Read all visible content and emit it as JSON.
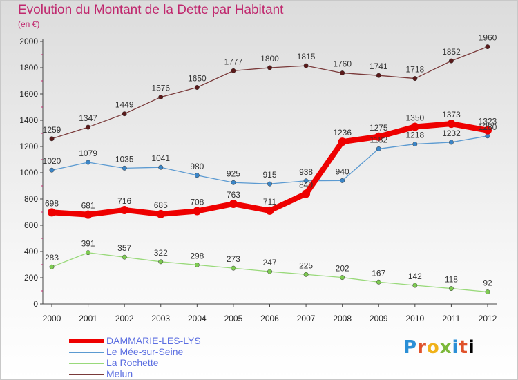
{
  "chart_data": {
    "type": "line",
    "title": "Evolution du Montant de la Dette par Habitant",
    "subtitle": "(en €)",
    "x": [
      "2000",
      "2001",
      "2002",
      "2003",
      "2004",
      "2005",
      "2006",
      "2007",
      "2008",
      "2009",
      "2010",
      "2011",
      "2012"
    ],
    "ylim": [
      0,
      2000
    ],
    "yticks": [
      0,
      200,
      400,
      600,
      800,
      1000,
      1200,
      1400,
      1600,
      1800,
      2000
    ],
    "grid": false,
    "legend_position": "bottom-left",
    "series": [
      {
        "name": "DAMMARIE-LES-LYS",
        "color": "#ee0000",
        "width": 8,
        "values": [
          698,
          681,
          716,
          685,
          708,
          763,
          711,
          840,
          1236,
          1275,
          1350,
          1373,
          1323
        ]
      },
      {
        "name": "Le Mée-sur-Seine",
        "color": "#5b9ad1",
        "width": 1.3,
        "values": [
          1020,
          1079,
          1035,
          1041,
          980,
          925,
          915,
          938,
          940,
          1182,
          1218,
          1232,
          1280
        ]
      },
      {
        "name": "La Rochette",
        "color": "#99d97a",
        "width": 1.3,
        "values": [
          283,
          391,
          357,
          322,
          298,
          273,
          247,
          225,
          202,
          167,
          142,
          118,
          92
        ]
      },
      {
        "name": "Melun",
        "color": "#7a3a3a",
        "width": 1.3,
        "values": [
          1259,
          1347,
          1449,
          1576,
          1650,
          1777,
          1800,
          1815,
          1760,
          1741,
          1718,
          1852,
          1960
        ]
      }
    ]
  },
  "brand": {
    "letters": [
      "P",
      "r",
      "o",
      "x",
      "i",
      "t",
      "i"
    ]
  }
}
